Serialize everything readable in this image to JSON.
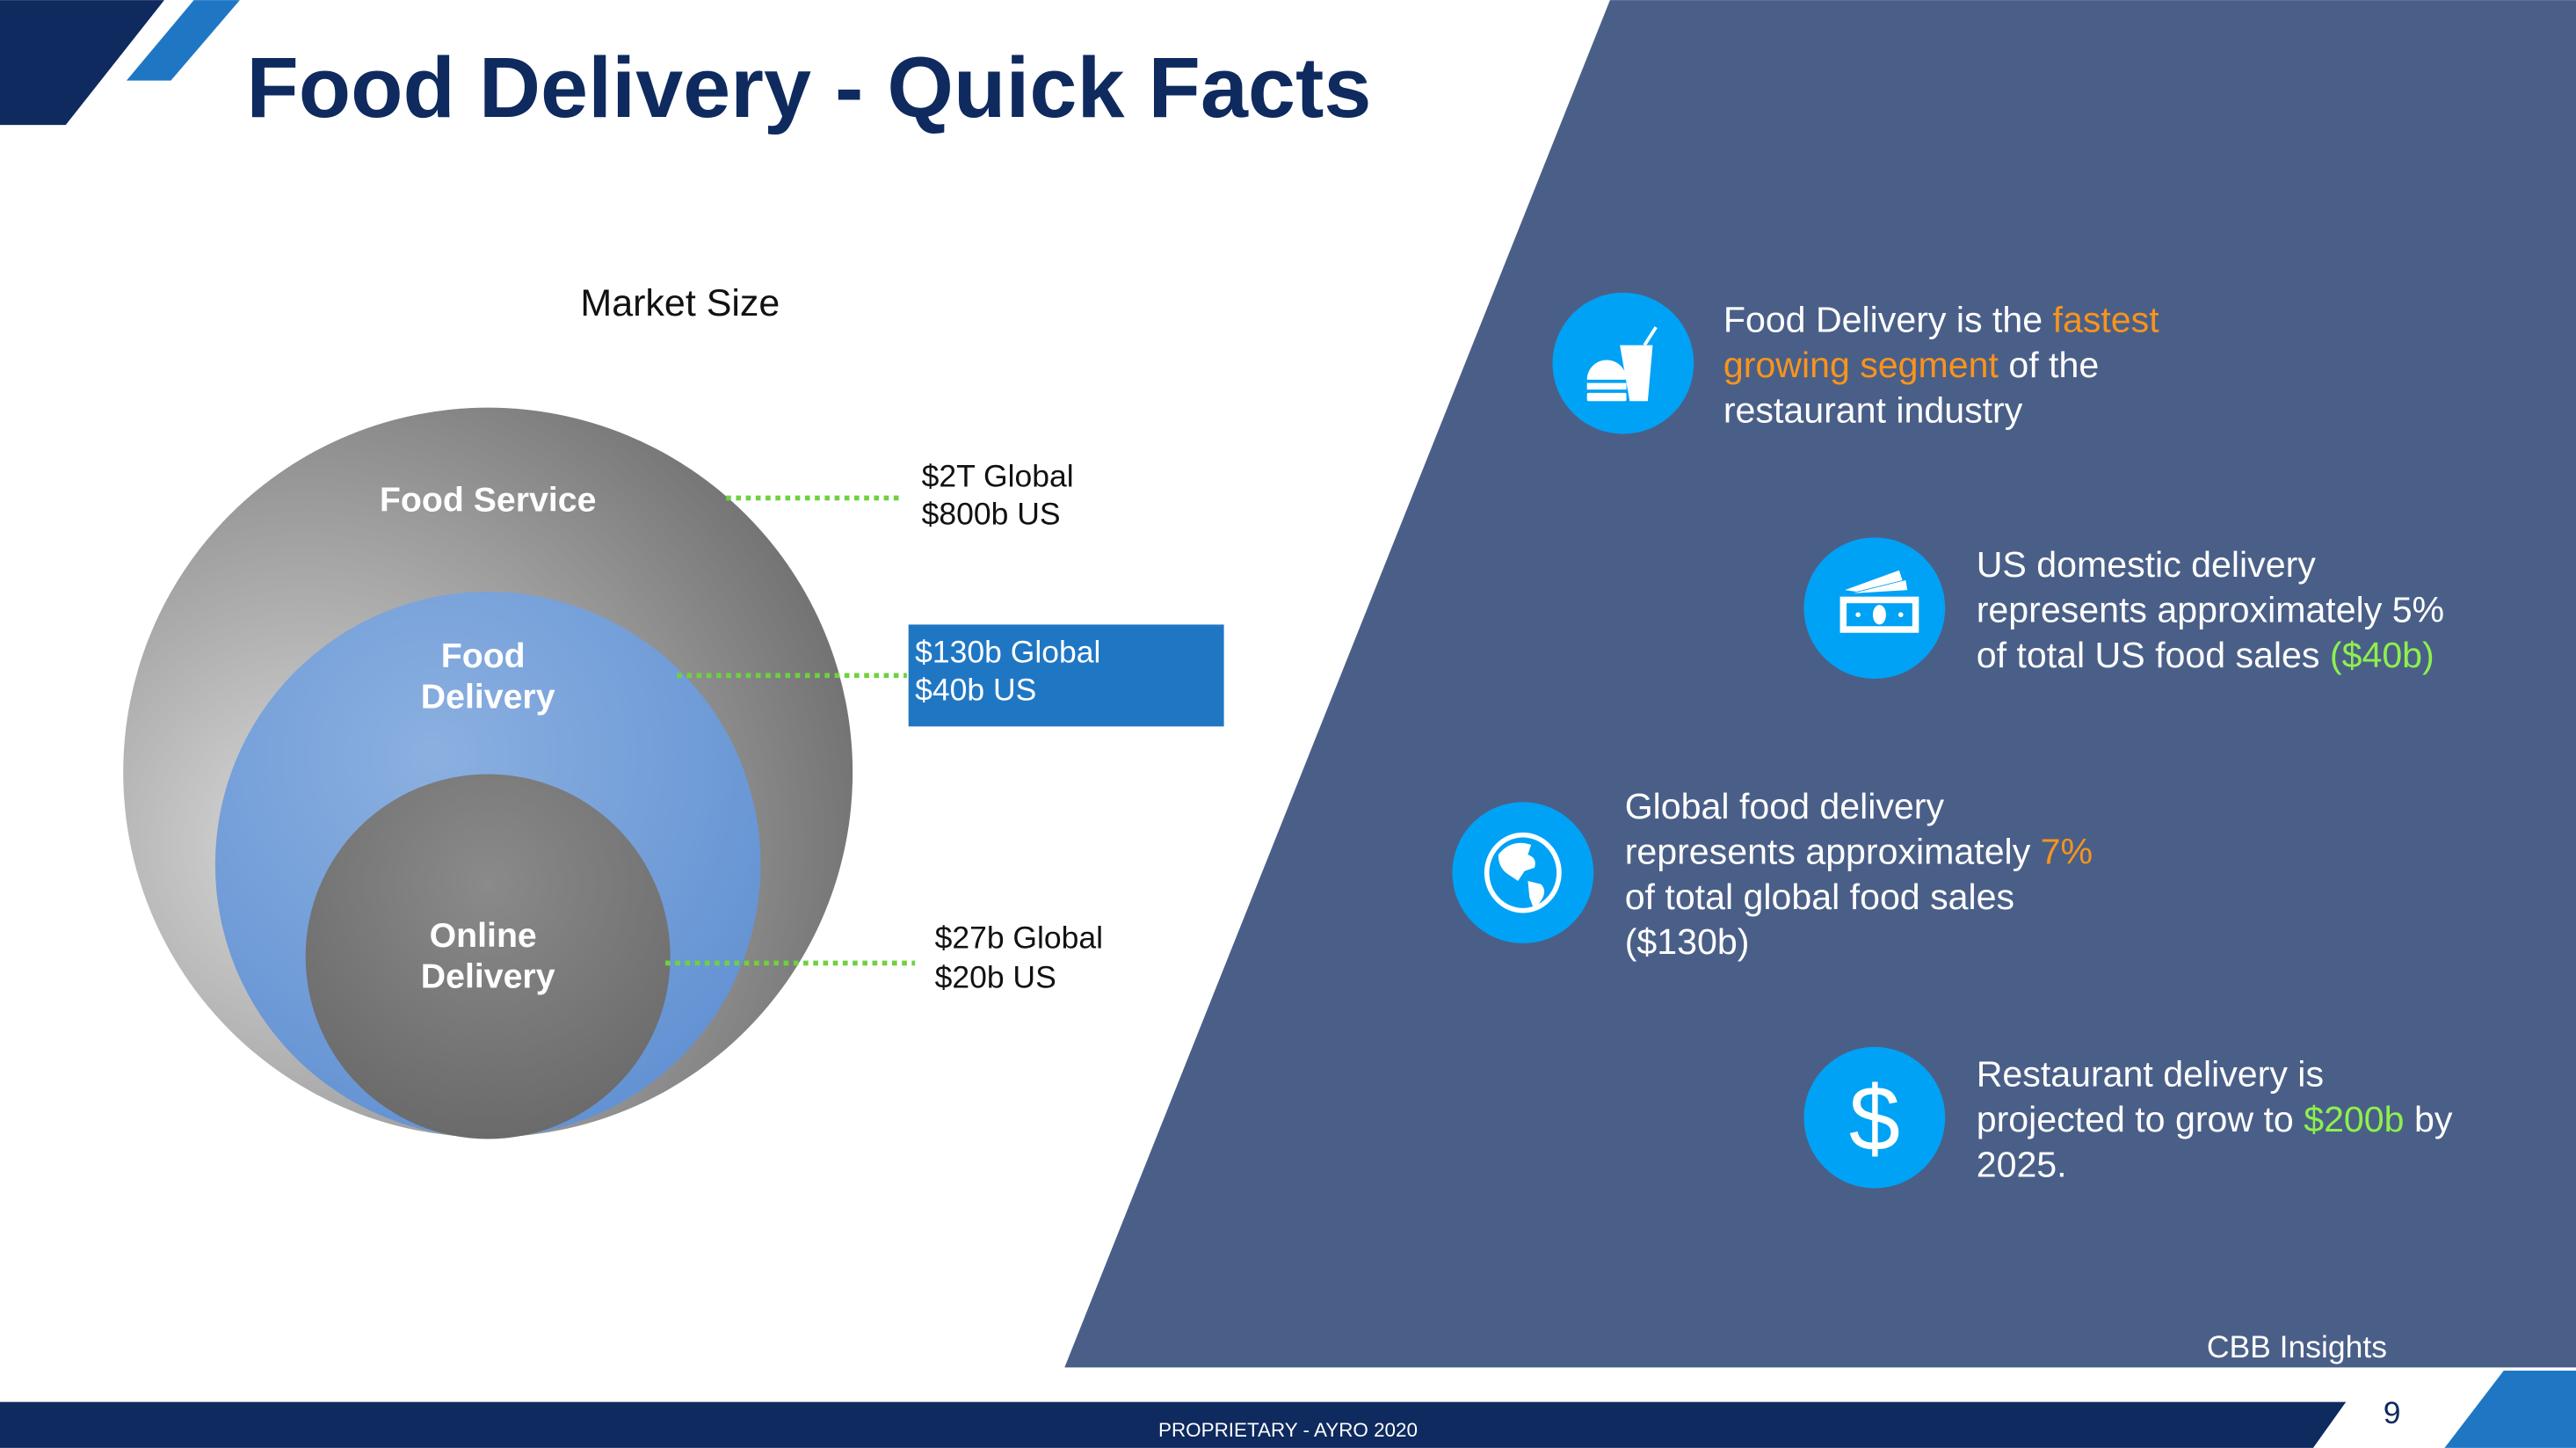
{
  "title": "Food Delivery - Quick Facts",
  "colors": {
    "navy": "#0e2a5e",
    "accent_blue": "#1f77c4",
    "panel": "#4a5f88",
    "icon_blue": "#00a2f5",
    "highlight_orange": "#f7941d",
    "highlight_green": "#8ef04c",
    "dotted_line": "#6fd140"
  },
  "market_size": {
    "heading": "Market Size",
    "circles": [
      {
        "label_lines": [
          "Food Service"
        ],
        "value_lines": [
          "$2T Global",
          "$800b US"
        ]
      },
      {
        "label_lines": [
          "Food",
          "Delivery"
        ],
        "value_lines": [
          "$130b Global",
          "$40b US"
        ],
        "highlighted": true
      },
      {
        "label_lines": [
          "Online",
          "Delivery"
        ],
        "value_lines": [
          "$27b Global",
          "$20b US"
        ]
      }
    ]
  },
  "facts": [
    {
      "icon": "food-drink-icon",
      "lines": [
        [
          {
            "t": "Food Delivery is the "
          },
          {
            "t": "fastest",
            "c": "orange"
          }
        ],
        [
          {
            "t": "growing segment",
            "c": "orange"
          },
          {
            "t": " of the"
          }
        ],
        [
          {
            "t": "restaurant industry"
          }
        ]
      ]
    },
    {
      "icon": "cash-icon",
      "lines": [
        [
          {
            "t": "US domestic delivery"
          }
        ],
        [
          {
            "t": "represents approximately 5%"
          }
        ],
        [
          {
            "t": "of total US food sales "
          },
          {
            "t": "($40b)",
            "c": "green"
          }
        ]
      ]
    },
    {
      "icon": "globe-icon",
      "lines": [
        [
          {
            "t": "Global food delivery"
          }
        ],
        [
          {
            "t": "represents approximately "
          },
          {
            "t": "7%",
            "c": "orange"
          }
        ],
        [
          {
            "t": "of total global food sales"
          }
        ],
        [
          {
            "t": "($130b)"
          }
        ]
      ]
    },
    {
      "icon": "dollar-icon",
      "lines": [
        [
          {
            "t": "Restaurant delivery is"
          }
        ],
        [
          {
            "t": "projected to grow to "
          },
          {
            "t": "$200b",
            "c": "green"
          },
          {
            "t": " by"
          }
        ],
        [
          {
            "t": "2025."
          }
        ]
      ]
    }
  ],
  "source": "CBB Insights",
  "footer": "PROPRIETARY - AYRO 2020",
  "page_number": "9"
}
